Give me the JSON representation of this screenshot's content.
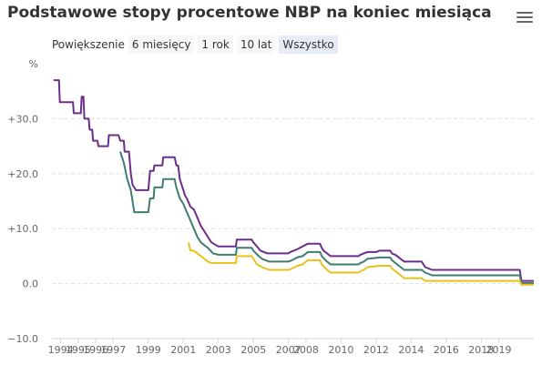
{
  "title": "Podstawowe stopy procentowe NBP na koniec miesiąca",
  "menu_icon": "hamburger-menu-icon",
  "zoom": {
    "label": "Powiększenie",
    "buttons": [
      "6 miesięcy",
      "1 rok",
      "10 lat",
      "Wszystko"
    ],
    "active": "Wszystko"
  },
  "chart_data": {
    "type": "line",
    "title": "Podstawowe stopy procentowe NBP na koniec miesiąca",
    "ylabel": "%",
    "ylim": [
      -10,
      40
    ],
    "yticks": [
      -10,
      0,
      10,
      20,
      30
    ],
    "ytick_labels": [
      "−10.0",
      "0.0",
      "+10.0",
      "+20.0",
      "+30.0"
    ],
    "xlim": [
      1993.5,
      2021.0
    ],
    "xticks": [
      1994,
      1995,
      1996,
      1997,
      1999,
      2001,
      2003,
      2005,
      2007,
      2008,
      2010,
      2012,
      2014,
      2016,
      2018,
      2019
    ],
    "xtick_labels": [
      "1994",
      "1995",
      "1996",
      "1997",
      "1999",
      "2001",
      "2003",
      "2005",
      "2007",
      "2008",
      "2010",
      "2012",
      "2014",
      "2016",
      "2018",
      "2019"
    ],
    "grid": true,
    "legend": "none",
    "series": [
      {
        "color": "#6b2e8a",
        "points": [
          [
            1993.6,
            37.0
          ],
          [
            1993.9,
            37.0
          ],
          [
            1993.95,
            33.0
          ],
          [
            1994.7,
            33.0
          ],
          [
            1994.75,
            31.0
          ],
          [
            1995.15,
            31.0
          ],
          [
            1995.2,
            34.0
          ],
          [
            1995.3,
            34.0
          ],
          [
            1995.35,
            30.0
          ],
          [
            1995.6,
            30.0
          ],
          [
            1995.65,
            28.0
          ],
          [
            1995.8,
            28.0
          ],
          [
            1995.85,
            26.0
          ],
          [
            1996.1,
            26.0
          ],
          [
            1996.15,
            25.0
          ],
          [
            1996.7,
            25.0
          ],
          [
            1996.75,
            27.0
          ],
          [
            1997.3,
            27.0
          ],
          [
            1997.4,
            26.0
          ],
          [
            1997.6,
            26.0
          ],
          [
            1997.65,
            24.0
          ],
          [
            1997.9,
            24.0
          ],
          [
            1998.0,
            20.0
          ],
          [
            1998.1,
            18.0
          ],
          [
            1998.3,
            17.0
          ],
          [
            1999.0,
            17.0
          ],
          [
            1999.1,
            20.5
          ],
          [
            1999.3,
            20.5
          ],
          [
            1999.35,
            21.5
          ],
          [
            1999.8,
            21.5
          ],
          [
            1999.85,
            23.0
          ],
          [
            2000.5,
            23.0
          ],
          [
            2000.6,
            21.5
          ],
          [
            2000.7,
            21.5
          ],
          [
            2000.8,
            19.0
          ],
          [
            2001.0,
            17.0
          ],
          [
            2001.1,
            16.0
          ],
          [
            2001.2,
            15.5
          ],
          [
            2001.4,
            14.0
          ],
          [
            2001.6,
            13.5
          ],
          [
            2001.8,
            12.0
          ],
          [
            2002.0,
            10.5
          ],
          [
            2002.2,
            9.5
          ],
          [
            2002.4,
            8.5
          ],
          [
            2002.6,
            7.5
          ],
          [
            2003.0,
            6.75
          ],
          [
            2004.0,
            6.75
          ],
          [
            2004.05,
            8.0
          ],
          [
            2004.9,
            8.0
          ],
          [
            2005.0,
            7.5
          ],
          [
            2005.2,
            6.75
          ],
          [
            2005.4,
            6.0
          ],
          [
            2005.8,
            5.5
          ],
          [
            2006.0,
            5.5
          ],
          [
            2007.0,
            5.5
          ],
          [
            2007.1,
            5.75
          ],
          [
            2007.5,
            6.25
          ],
          [
            2007.8,
            6.75
          ],
          [
            2008.1,
            7.25
          ],
          [
            2008.8,
            7.25
          ],
          [
            2008.9,
            6.5
          ],
          [
            2009.0,
            6.0
          ],
          [
            2009.2,
            5.5
          ],
          [
            2009.4,
            5.0
          ],
          [
            2011.0,
            5.0
          ],
          [
            2011.1,
            5.25
          ],
          [
            2011.3,
            5.5
          ],
          [
            2011.5,
            5.75
          ],
          [
            2011.6,
            5.75
          ],
          [
            2012.0,
            5.75
          ],
          [
            2012.2,
            6.0
          ],
          [
            2012.8,
            6.0
          ],
          [
            2012.9,
            5.5
          ],
          [
            2013.1,
            5.25
          ],
          [
            2013.3,
            4.75
          ],
          [
            2013.6,
            4.0
          ],
          [
            2014.0,
            4.0
          ],
          [
            2014.6,
            4.0
          ],
          [
            2014.8,
            3.0
          ],
          [
            2015.2,
            2.5
          ],
          [
            2020.2,
            2.5
          ],
          [
            2020.3,
            0.5
          ],
          [
            2021.0,
            0.5
          ]
        ]
      },
      {
        "color": "#3e7d6f",
        "points": [
          [
            1997.4,
            24.0
          ],
          [
            1997.6,
            22.0
          ],
          [
            1997.8,
            19.0
          ],
          [
            1998.0,
            17.0
          ],
          [
            1998.2,
            13.0
          ],
          [
            1999.0,
            13.0
          ],
          [
            1999.1,
            15.5
          ],
          [
            1999.3,
            15.5
          ],
          [
            1999.35,
            17.5
          ],
          [
            1999.8,
            17.5
          ],
          [
            1999.85,
            19.0
          ],
          [
            2000.5,
            19.0
          ],
          [
            2000.6,
            17.5
          ],
          [
            2000.8,
            15.5
          ],
          [
            2001.0,
            14.5
          ],
          [
            2001.2,
            13.0
          ],
          [
            2001.4,
            11.5
          ],
          [
            2001.6,
            10.0
          ],
          [
            2001.8,
            8.5
          ],
          [
            2002.0,
            7.5
          ],
          [
            2002.4,
            6.5
          ],
          [
            2002.7,
            5.5
          ],
          [
            2003.0,
            5.25
          ],
          [
            2004.0,
            5.25
          ],
          [
            2004.05,
            6.5
          ],
          [
            2004.9,
            6.5
          ],
          [
            2005.0,
            6.0
          ],
          [
            2005.3,
            5.0
          ],
          [
            2005.5,
            4.5
          ],
          [
            2005.9,
            4.0
          ],
          [
            2006.0,
            4.0
          ],
          [
            2007.0,
            4.0
          ],
          [
            2007.2,
            4.25
          ],
          [
            2007.5,
            4.75
          ],
          [
            2007.8,
            5.0
          ],
          [
            2008.1,
            5.75
          ],
          [
            2008.8,
            5.75
          ],
          [
            2008.9,
            5.0
          ],
          [
            2009.2,
            4.0
          ],
          [
            2009.4,
            3.5
          ],
          [
            2011.0,
            3.5
          ],
          [
            2011.1,
            3.75
          ],
          [
            2011.3,
            4.0
          ],
          [
            2011.5,
            4.5
          ],
          [
            2012.2,
            4.75
          ],
          [
            2012.8,
            4.75
          ],
          [
            2012.9,
            4.25
          ],
          [
            2013.2,
            3.5
          ],
          [
            2013.4,
            3.0
          ],
          [
            2013.6,
            2.5
          ],
          [
            2014.6,
            2.5
          ],
          [
            2014.8,
            2.0
          ],
          [
            2015.2,
            1.5
          ],
          [
            2020.2,
            1.5
          ],
          [
            2020.3,
            0.1
          ],
          [
            2021.0,
            0.1
          ]
        ]
      },
      {
        "color": "#e8c21a",
        "points": [
          [
            2001.3,
            7.5
          ],
          [
            2001.4,
            6.0
          ],
          [
            2001.6,
            6.0
          ],
          [
            2001.8,
            5.5
          ],
          [
            2002.0,
            5.0
          ],
          [
            2002.2,
            4.5
          ],
          [
            2002.4,
            4.0
          ],
          [
            2002.6,
            3.75
          ],
          [
            2003.0,
            3.75
          ],
          [
            2004.0,
            3.75
          ],
          [
            2004.05,
            5.0
          ],
          [
            2004.9,
            5.0
          ],
          [
            2005.0,
            4.5
          ],
          [
            2005.2,
            3.5
          ],
          [
            2005.5,
            3.0
          ],
          [
            2005.9,
            2.5
          ],
          [
            2006.0,
            2.5
          ],
          [
            2007.0,
            2.5
          ],
          [
            2007.2,
            2.75
          ],
          [
            2007.5,
            3.25
          ],
          [
            2007.8,
            3.5
          ],
          [
            2008.1,
            4.25
          ],
          [
            2008.8,
            4.25
          ],
          [
            2008.9,
            3.5
          ],
          [
            2009.2,
            2.5
          ],
          [
            2009.4,
            2.0
          ],
          [
            2011.0,
            2.0
          ],
          [
            2011.1,
            2.25
          ],
          [
            2011.3,
            2.5
          ],
          [
            2011.5,
            3.0
          ],
          [
            2012.2,
            3.25
          ],
          [
            2012.8,
            3.25
          ],
          [
            2012.9,
            2.75
          ],
          [
            2013.2,
            2.0
          ],
          [
            2013.4,
            1.5
          ],
          [
            2013.6,
            1.0
          ],
          [
            2014.6,
            1.0
          ],
          [
            2014.8,
            0.5
          ],
          [
            2015.2,
            0.5
          ],
          [
            2020.2,
            0.5
          ],
          [
            2020.3,
            -0.2
          ],
          [
            2021.0,
            -0.2
          ]
        ]
      }
    ]
  }
}
